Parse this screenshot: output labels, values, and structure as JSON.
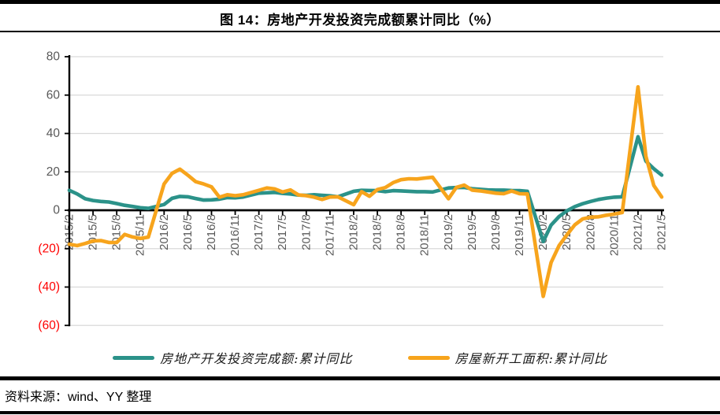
{
  "title": "图 14：房地产开发投资完成额累计同比（%）",
  "source": "资料来源：wind、YY 整理",
  "colors": {
    "grid": "#d9d9d9",
    "axis": "#000000",
    "tick_label": "#595959",
    "negative_label": "#ff0000",
    "series_investment": "#2b9289",
    "series_newstarts": "#f7a41c"
  },
  "chart_data": {
    "type": "line",
    "title": "图 14：房地产开发投资完成额累计同比（%）",
    "xlabel": "",
    "ylabel": "",
    "ylim": [
      -60,
      80
    ],
    "y_ticks": [
      80,
      60,
      40,
      20,
      0,
      -20,
      -40,
      -60
    ],
    "y_tick_labels": [
      "80",
      "60",
      "40",
      "20",
      "0",
      "(20)",
      "(40)",
      "(60)"
    ],
    "grid": "horizontal gridlines at every 20, zero line is black axis",
    "legend_position": "bottom",
    "x_tick_labels": [
      "2015/2",
      "2015/5",
      "2015/8",
      "2015/11",
      "2016/2",
      "2016/5",
      "2016/8",
      "2016/11",
      "2017/2",
      "2017/5",
      "2017/8",
      "2017/11",
      "2018/2",
      "2018/5",
      "2018/8",
      "2018/11",
      "2019/2",
      "2019/5",
      "2019/8",
      "2019/11",
      "2020/2",
      "2020/5",
      "2020/8",
      "2020/11",
      "2021/2",
      "2021/5"
    ],
    "categories": [
      "2015/2",
      "2015/3",
      "2015/4",
      "2015/5",
      "2015/6",
      "2015/7",
      "2015/8",
      "2015/9",
      "2015/10",
      "2015/11",
      "2015/12",
      "2016/2",
      "2016/3",
      "2016/4",
      "2016/5",
      "2016/6",
      "2016/7",
      "2016/8",
      "2016/9",
      "2016/10",
      "2016/11",
      "2016/12",
      "2017/2",
      "2017/3",
      "2017/4",
      "2017/5",
      "2017/6",
      "2017/7",
      "2017/8",
      "2017/9",
      "2017/10",
      "2017/11",
      "2017/12",
      "2018/2",
      "2018/3",
      "2018/4",
      "2018/5",
      "2018/6",
      "2018/7",
      "2018/8",
      "2018/9",
      "2018/10",
      "2018/11",
      "2018/12",
      "2019/2",
      "2019/3",
      "2019/4",
      "2019/5",
      "2019/6",
      "2019/7",
      "2019/8",
      "2019/9",
      "2019/10",
      "2019/11",
      "2019/12",
      "2020/2",
      "2020/3",
      "2020/4",
      "2020/5",
      "2020/6",
      "2020/7",
      "2020/8",
      "2020/9",
      "2020/10",
      "2020/11",
      "2020/12",
      "2021/2",
      "2021/3",
      "2021/4",
      "2021/5"
    ],
    "series": [
      {
        "name": "房地产开发投资完成额:累计同比",
        "color": "#2b9289",
        "values": [
          10.4,
          8.5,
          6.0,
          5.1,
          4.6,
          4.3,
          3.5,
          2.6,
          2.0,
          1.3,
          1.0,
          3.0,
          6.2,
          7.2,
          7.0,
          6.1,
          5.3,
          5.4,
          5.8,
          6.6,
          6.5,
          6.9,
          8.9,
          9.1,
          9.3,
          8.8,
          8.5,
          7.9,
          7.8,
          8.1,
          7.8,
          7.5,
          7.0,
          9.9,
          10.4,
          10.3,
          10.2,
          9.7,
          10.2,
          10.1,
          9.9,
          9.7,
          9.7,
          9.5,
          11.6,
          11.8,
          11.9,
          11.2,
          10.9,
          10.6,
          10.5,
          10.5,
          10.3,
          10.2,
          9.9,
          -16.3,
          -7.7,
          -3.3,
          -0.3,
          1.9,
          3.4,
          4.6,
          5.6,
          6.3,
          6.8,
          7.0,
          38.3,
          25.6,
          21.6,
          18.3
        ]
      },
      {
        "name": "房屋新开工面积:累计同比",
        "color": "#f7a41c",
        "values": [
          -17.7,
          -18.4,
          -17.3,
          -16.0,
          -15.8,
          -16.8,
          -16.8,
          -12.6,
          -13.9,
          -14.7,
          -14.0,
          13.7,
          19.2,
          21.4,
          18.3,
          14.9,
          13.7,
          12.2,
          6.8,
          8.1,
          7.6,
          8.1,
          10.4,
          11.6,
          11.1,
          9.5,
          10.6,
          8.0,
          7.6,
          6.8,
          5.6,
          6.9,
          7.0,
          2.9,
          9.7,
          7.3,
          10.8,
          11.8,
          14.4,
          15.9,
          16.4,
          16.3,
          16.8,
          17.2,
          6.0,
          11.9,
          13.1,
          10.5,
          10.1,
          9.5,
          8.9,
          8.6,
          10.0,
          8.6,
          8.5,
          -44.9,
          -27.2,
          -18.4,
          -12.8,
          -7.6,
          -4.5,
          -3.6,
          -3.4,
          -2.6,
          -2.0,
          -1.2,
          64.3,
          28.2,
          12.9,
          6.9
        ]
      }
    ]
  }
}
